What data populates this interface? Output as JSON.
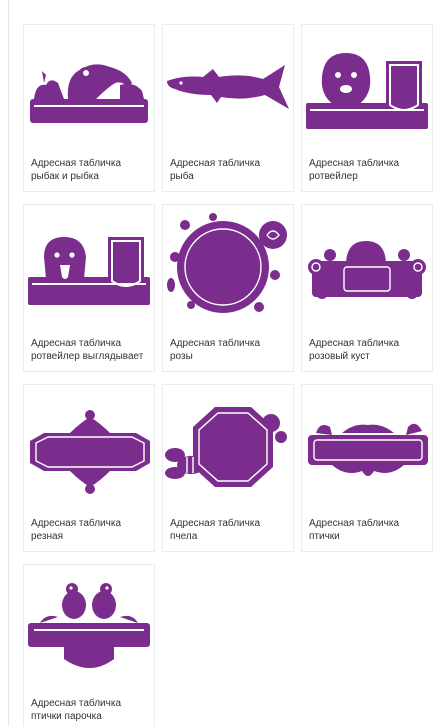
{
  "accent": "#7B2D8E",
  "products": [
    {
      "line1": "Адресная табличка",
      "line2": "рыбак и рыбка",
      "icon": "fisherman-fish-plaque-icon"
    },
    {
      "line1": "Адресная табличка",
      "line2": "рыба",
      "icon": "fish-plaque-icon"
    },
    {
      "line1": "Адресная табличка",
      "line2": "ротвейлер",
      "icon": "rottweiler-plaque-icon"
    },
    {
      "line1": "Адресная табличка",
      "line2": "ротвейлер выглядывает",
      "icon": "rottweiler-peeking-plaque-icon"
    },
    {
      "line1": "Адресная табличка",
      "line2": "розы",
      "icon": "roses-plaque-icon"
    },
    {
      "line1": "Адресная табличка",
      "line2": "розовый куст",
      "icon": "rose-bush-plaque-icon"
    },
    {
      "line1": "Адресная табличка",
      "line2": "резная",
      "icon": "carved-plaque-icon"
    },
    {
      "line1": "Адресная табличка",
      "line2": "пчела",
      "icon": "bee-plaque-icon"
    },
    {
      "line1": "Адресная табличка",
      "line2": "птички",
      "icon": "birds-plaque-icon"
    },
    {
      "line1": "Адресная табличка",
      "line2": "птички парочка",
      "icon": "bird-couple-plaque-icon"
    }
  ]
}
